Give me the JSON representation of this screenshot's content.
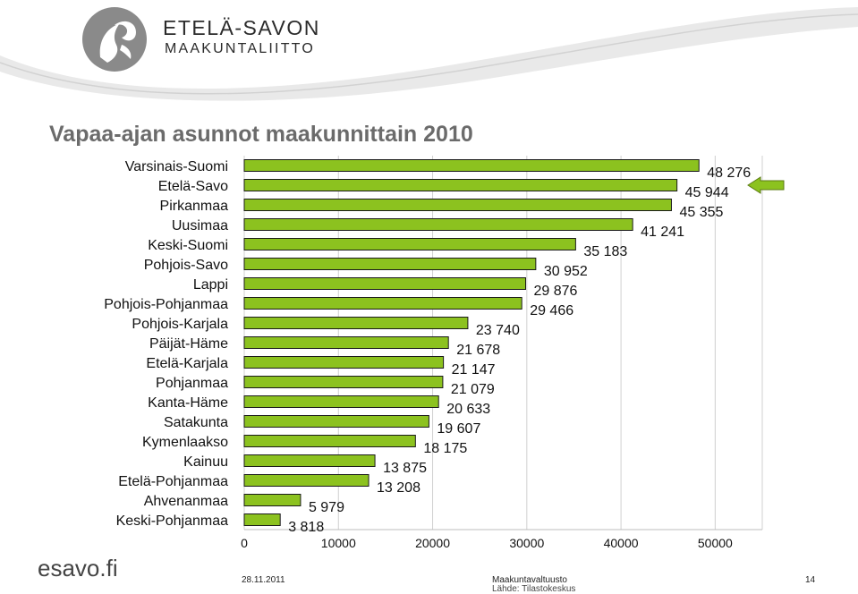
{
  "branding": {
    "org_line1": "ETELÄ-SAVON",
    "org_line2": "MAAKUNTALIITTO",
    "site": "esavo.fi",
    "accent_color": "#8cc21f"
  },
  "slide": {
    "title": "Vapaa-ajan asunnot maakunnittain 2010",
    "date": "28.11.2011",
    "presentation": "Maakuntavaltuusto",
    "source": "Lähde: Tilastokeskus",
    "page": "14"
  },
  "chart_data": {
    "type": "bar",
    "orientation": "horizontal",
    "categories": [
      "Varsinais-Suomi",
      "Etelä-Savo",
      "Pirkanmaa",
      "Uusimaa",
      "Keski-Suomi",
      "Pohjois-Savo",
      "Lappi",
      "Pohjois-Pohjanmaa",
      "Pohjois-Karjala",
      "Päijät-Häme",
      "Etelä-Karjala",
      "Pohjanmaa",
      "Kanta-Häme",
      "Satakunta",
      "Kymenlaakso",
      "Kainuu",
      "Etelä-Pohjanmaa",
      "Ahvenanmaa",
      "Keski-Pohjanmaa"
    ],
    "values": [
      48276,
      45944,
      45355,
      41241,
      35183,
      30952,
      29876,
      29466,
      23740,
      21678,
      21147,
      21079,
      20633,
      19607,
      18175,
      13875,
      13208,
      5979,
      3818
    ],
    "value_labels": [
      "48 276",
      "45 944",
      "45 355",
      "41 241",
      "35 183",
      "30 952",
      "29 876",
      "29 466",
      "23 740",
      "21 678",
      "21 147",
      "21 079",
      "20 633",
      "19 607",
      "18 175",
      "13 875",
      "13 208",
      "5 979",
      "3 818"
    ],
    "x_ticks": [
      0,
      10000,
      20000,
      30000,
      40000,
      50000
    ],
    "x_tick_labels": [
      "0",
      "10000",
      "20000",
      "30000",
      "40000",
      "50000"
    ],
    "xlim": [
      0,
      55000
    ],
    "grid": "vertical",
    "bar_color": "#8cc21f",
    "highlight_category": "Etelä-Savo",
    "highlight_marker": "arrow"
  }
}
